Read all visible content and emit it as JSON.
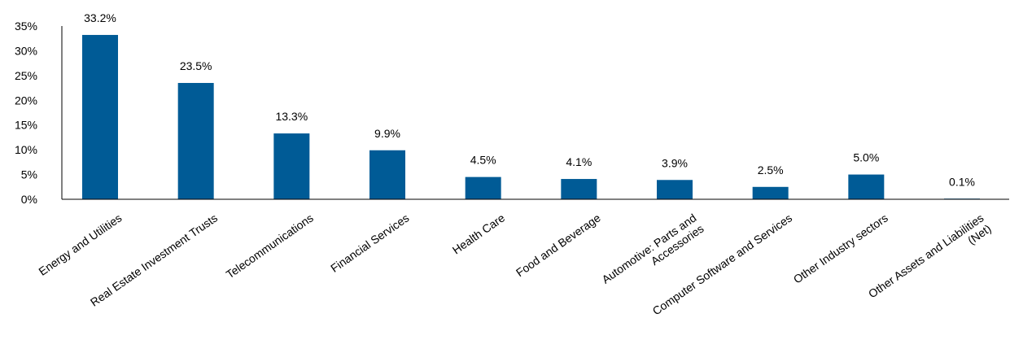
{
  "chart_data": {
    "type": "bar",
    "categories": [
      [
        "Energy and Utilities"
      ],
      [
        "Real Estate Investment Trusts"
      ],
      [
        "Telecommunications"
      ],
      [
        "Financial Services"
      ],
      [
        "Health Care"
      ],
      [
        "Food and Beverage"
      ],
      [
        "Automotive: Parts and",
        "Accessories"
      ],
      [
        "Computer Software and Services"
      ],
      [
        "Other Industry sectors"
      ],
      [
        "Other Assets and Liabilities",
        "(Net)"
      ]
    ],
    "values": [
      33.2,
      23.5,
      13.3,
      9.9,
      4.5,
      4.1,
      3.9,
      2.5,
      5.0,
      0.1
    ],
    "data_labels": [
      "33.2%",
      "23.5%",
      "13.3%",
      "9.9%",
      "4.5%",
      "4.1%",
      "3.9%",
      "2.5%",
      "5.0%",
      "0.1%"
    ],
    "y_ticks": [
      0,
      5,
      10,
      15,
      20,
      25,
      30,
      35
    ],
    "y_tick_labels": [
      "0%",
      "5%",
      "10%",
      "15%",
      "20%",
      "25%",
      "30%",
      "35%"
    ],
    "ylim": [
      0,
      35
    ],
    "bar_color": "#005B96",
    "grid": false,
    "legend": "none",
    "title": "",
    "xlabel": "",
    "ylabel": ""
  }
}
